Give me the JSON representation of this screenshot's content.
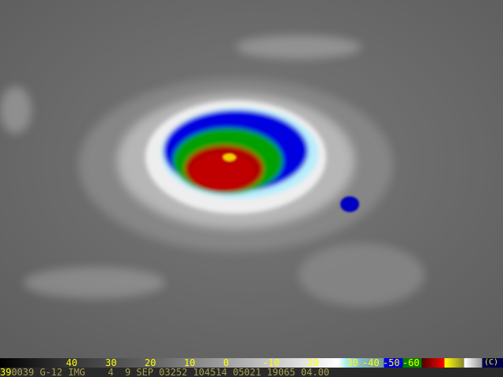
{
  "scale": {
    "labels": [
      "40",
      "30",
      "20",
      "10",
      "0",
      "-10",
      "-20",
      "-30",
      "-40",
      "-50",
      "-60"
    ],
    "copyright": "(C)"
  },
  "info": {
    "frame": "39",
    "caption": "0039 G-12 IMG    4  9 SEP 03252 104514 05021 19065 04.00"
  },
  "colors": {
    "background": "#6a6a6a",
    "blue": "#0000e0",
    "green": "#008000",
    "red": "#c00000",
    "label": "#ffff00"
  }
}
